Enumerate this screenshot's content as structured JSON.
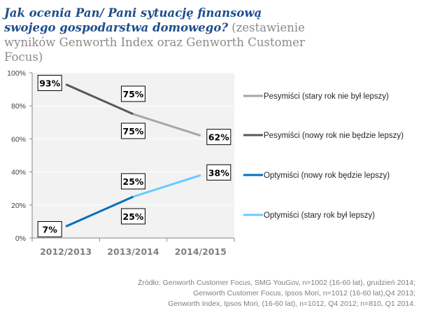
{
  "title": {
    "question": "Jak ocenia Pan/ Pani sytuację finansową swojego gospodarstwa domowego?",
    "subtitle": "(zestawienie wyników Genworth Index oraz Genworth Customer Focus)"
  },
  "chart_data": {
    "type": "line",
    "categories": [
      "2012/2013",
      "2013/2014",
      "2014/2015"
    ],
    "ylim": [
      0,
      100
    ],
    "yticks": [
      "0%",
      "20%",
      "40%",
      "60%",
      "80%",
      "100%"
    ],
    "ytick_values": [
      0,
      20,
      40,
      60,
      80,
      100
    ],
    "grid": true,
    "legend_position": "right",
    "series": [
      {
        "name": "Pesymiści (stary rok nie był lepszy)",
        "color": "#a6a6a6",
        "points": [
          {
            "cat": 1,
            "value": 75
          },
          {
            "cat": 2,
            "value": 62
          }
        ],
        "labels": [
          "75%",
          "62%"
        ]
      },
      {
        "name": "Pesymiści (nowy rok nie będzie lepszy)",
        "color": "#595959",
        "points": [
          {
            "cat": 0,
            "value": 93
          },
          {
            "cat": 1,
            "value": 75
          }
        ],
        "labels": [
          "93%",
          "75%"
        ]
      },
      {
        "name": "Optymiści (nowy rok będzie lepszy)",
        "color": "#0070c0",
        "points": [
          {
            "cat": 0,
            "value": 7
          },
          {
            "cat": 1,
            "value": 25
          }
        ],
        "labels": [
          "7%",
          "25%"
        ]
      },
      {
        "name": "Optymiści (stary rok był lepszy)",
        "color": "#66ccff",
        "points": [
          {
            "cat": 1,
            "value": 25
          },
          {
            "cat": 2,
            "value": 38
          }
        ],
        "labels": [
          "25%",
          "38%"
        ]
      }
    ]
  },
  "source": [
    "Źródło: Genworth Customer Focus, SMG YouGov, n=1002 (16-60 lat), grudzień 2014;",
    "Genworth Customer Focus, Ipsos Mori, n=1012 (16-60 lat),Q4 2013;",
    "Genworth Index, Ipsos Mori, (16-60 lat),  n=1012, Q4 2012; n=810, Q1 2014."
  ]
}
